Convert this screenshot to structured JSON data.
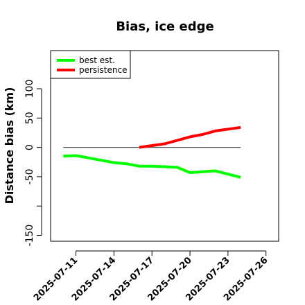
{
  "chart_data": {
    "type": "line",
    "title": "Bias, ice edge",
    "xlabel": "",
    "ylabel": "Distance bias (km)",
    "x_axis_type": "date",
    "xlim": [
      "2025-07-09",
      "2025-07-27"
    ],
    "ylim": [
      -160,
      165
    ],
    "x_ticks": [
      "2025-07-11",
      "2025-07-14",
      "2025-07-17",
      "2025-07-20",
      "2025-07-23",
      "2025-07-26"
    ],
    "y_ticks": [
      -150,
      -50,
      0,
      50,
      100
    ],
    "grid": false,
    "legend_position": "top-left",
    "reference_line": {
      "y": 0,
      "x_range": [
        "2025-07-10",
        "2025-07-24"
      ],
      "color": "#555555"
    },
    "series": [
      {
        "name": "best est.",
        "color": "#00ff00",
        "x": [
          "2025-07-10",
          "2025-07-11",
          "2025-07-12",
          "2025-07-13",
          "2025-07-14",
          "2025-07-15",
          "2025-07-16",
          "2025-07-17",
          "2025-07-18",
          "2025-07-19",
          "2025-07-20",
          "2025-07-22",
          "2025-07-24"
        ],
        "y": [
          -15,
          -14,
          -18,
          -22,
          -26,
          -28,
          -32,
          -32,
          -33,
          -34,
          -43,
          -40,
          -51
        ]
      },
      {
        "name": "persistence",
        "color": "#ff0000",
        "x": [
          "2025-07-16",
          "2025-07-18",
          "2025-07-19",
          "2025-07-20",
          "2025-07-21",
          "2025-07-22",
          "2025-07-24"
        ],
        "y": [
          0,
          6,
          12,
          18,
          22,
          28,
          34
        ]
      }
    ]
  }
}
